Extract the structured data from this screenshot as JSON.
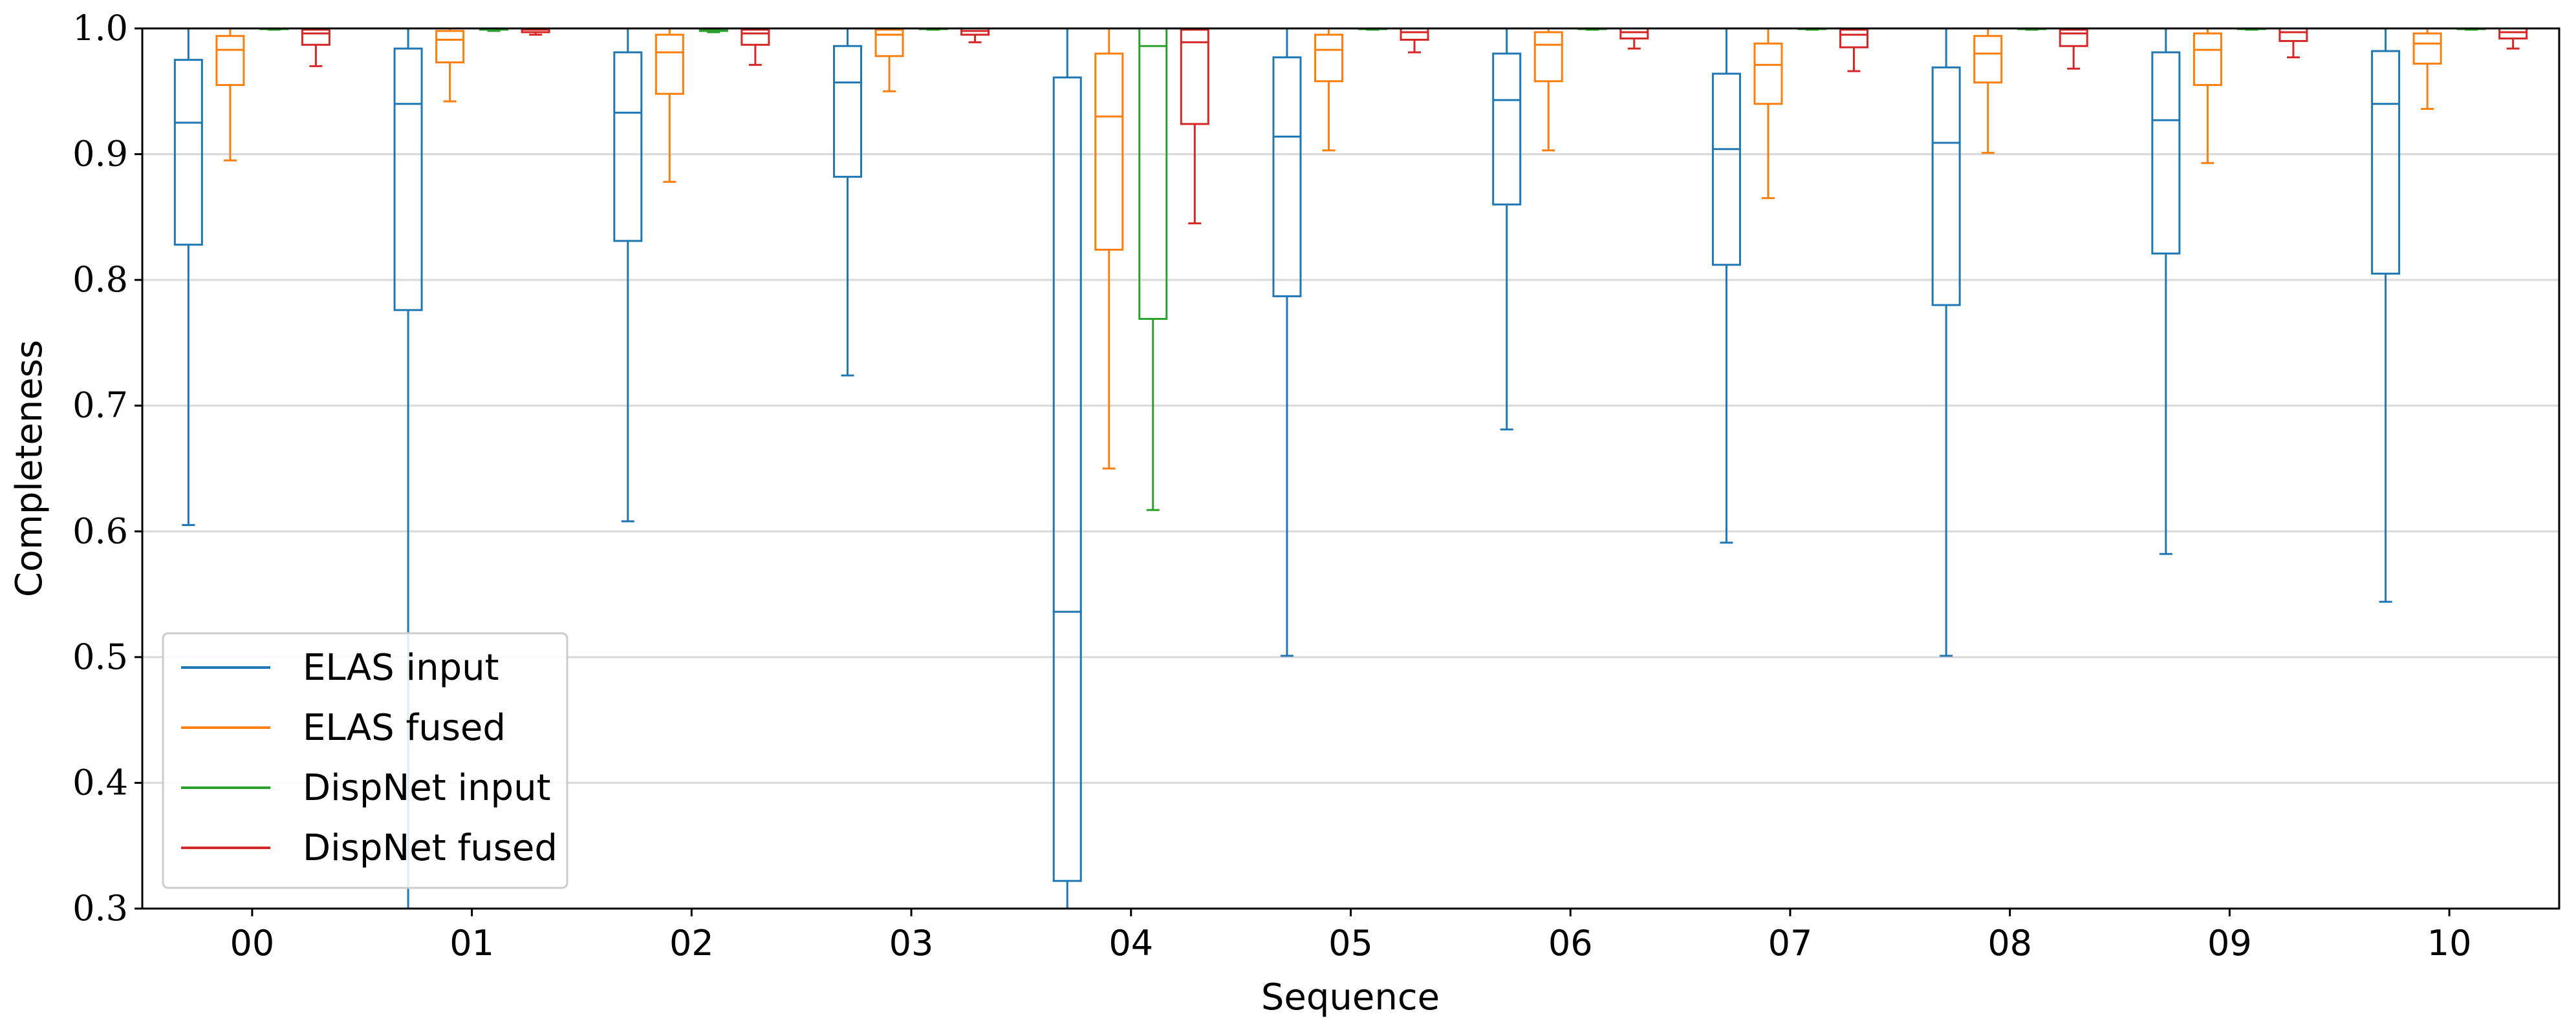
{
  "chart_data": {
    "type": "box",
    "title": "",
    "xlabel": "Sequence",
    "ylabel": "Completeness",
    "ylim": [
      0.3,
      1.0
    ],
    "yticks": [
      "0.3",
      "0.4",
      "0.5",
      "0.6",
      "0.7",
      "0.8",
      "0.9",
      "1.0"
    ],
    "categories": [
      "00",
      "01",
      "02",
      "03",
      "04",
      "05",
      "06",
      "07",
      "08",
      "09",
      "10"
    ],
    "grid": "horizontal",
    "legend_position": "lower-left",
    "series": [
      {
        "name": "ELAS input",
        "color": "#1f77b4",
        "boxes": [
          {
            "whislo": 0.605,
            "q1": 0.828,
            "med": 0.925,
            "q3": 0.975,
            "whishi": 1.0
          },
          {
            "whislo": 0.3,
            "q1": 0.776,
            "med": 0.94,
            "q3": 0.984,
            "whishi": 1.0
          },
          {
            "whislo": 0.608,
            "q1": 0.831,
            "med": 0.933,
            "q3": 0.981,
            "whishi": 1.0
          },
          {
            "whislo": 0.724,
            "q1": 0.882,
            "med": 0.957,
            "q3": 0.986,
            "whishi": 1.0
          },
          {
            "whislo": 0.3,
            "q1": 0.322,
            "med": 0.536,
            "q3": 0.961,
            "whishi": 1.0
          },
          {
            "whislo": 0.501,
            "q1": 0.787,
            "med": 0.914,
            "q3": 0.977,
            "whishi": 1.0
          },
          {
            "whislo": 0.681,
            "q1": 0.86,
            "med": 0.943,
            "q3": 0.98,
            "whishi": 1.0
          },
          {
            "whislo": 0.591,
            "q1": 0.812,
            "med": 0.904,
            "q3": 0.964,
            "whishi": 1.0
          },
          {
            "whislo": 0.501,
            "q1": 0.78,
            "med": 0.909,
            "q3": 0.969,
            "whishi": 1.0
          },
          {
            "whislo": 0.582,
            "q1": 0.821,
            "med": 0.927,
            "q3": 0.981,
            "whishi": 1.0
          },
          {
            "whislo": 0.544,
            "q1": 0.805,
            "med": 0.94,
            "q3": 0.982,
            "whishi": 1.0
          }
        ]
      },
      {
        "name": "ELAS fused",
        "color": "#ff7f0e",
        "boxes": [
          {
            "whislo": 0.895,
            "q1": 0.955,
            "med": 0.983,
            "q3": 0.994,
            "whishi": 1.0
          },
          {
            "whislo": 0.942,
            "q1": 0.973,
            "med": 0.991,
            "q3": 0.998,
            "whishi": 1.0
          },
          {
            "whislo": 0.878,
            "q1": 0.948,
            "med": 0.981,
            "q3": 0.995,
            "whishi": 1.0
          },
          {
            "whislo": 0.95,
            "q1": 0.978,
            "med": 0.995,
            "q3": 0.999,
            "whishi": 1.0
          },
          {
            "whislo": 0.65,
            "q1": 0.824,
            "med": 0.93,
            "q3": 0.98,
            "whishi": 1.0
          },
          {
            "whislo": 0.903,
            "q1": 0.958,
            "med": 0.983,
            "q3": 0.995,
            "whishi": 1.0
          },
          {
            "whislo": 0.903,
            "q1": 0.958,
            "med": 0.987,
            "q3": 0.997,
            "whishi": 1.0
          },
          {
            "whislo": 0.865,
            "q1": 0.94,
            "med": 0.971,
            "q3": 0.988,
            "whishi": 1.0
          },
          {
            "whislo": 0.901,
            "q1": 0.957,
            "med": 0.98,
            "q3": 0.994,
            "whishi": 1.0
          },
          {
            "whislo": 0.893,
            "q1": 0.955,
            "med": 0.983,
            "q3": 0.996,
            "whishi": 1.0
          },
          {
            "whislo": 0.936,
            "q1": 0.972,
            "med": 0.988,
            "q3": 0.996,
            "whishi": 1.0
          }
        ]
      },
      {
        "name": "DispNet input",
        "color": "#2ca02c",
        "boxes": [
          {
            "whislo": 0.999,
            "q1": 0.9995,
            "med": 1.0,
            "q3": 1.0,
            "whishi": 1.0
          },
          {
            "whislo": 0.998,
            "q1": 0.999,
            "med": 1.0,
            "q3": 1.0,
            "whishi": 1.0
          },
          {
            "whislo": 0.997,
            "q1": 0.998,
            "med": 0.999,
            "q3": 1.0,
            "whishi": 1.0
          },
          {
            "whislo": 0.999,
            "q1": 0.9995,
            "med": 1.0,
            "q3": 1.0,
            "whishi": 1.0
          },
          {
            "whislo": 0.617,
            "q1": 0.769,
            "med": 0.986,
            "q3": 1.0,
            "whishi": 1.0
          },
          {
            "whislo": 0.999,
            "q1": 0.9995,
            "med": 1.0,
            "q3": 1.0,
            "whishi": 1.0
          },
          {
            "whislo": 0.999,
            "q1": 0.9995,
            "med": 1.0,
            "q3": 1.0,
            "whishi": 1.0
          },
          {
            "whislo": 0.999,
            "q1": 0.9995,
            "med": 1.0,
            "q3": 1.0,
            "whishi": 1.0
          },
          {
            "whislo": 0.999,
            "q1": 0.9995,
            "med": 1.0,
            "q3": 1.0,
            "whishi": 1.0
          },
          {
            "whislo": 0.999,
            "q1": 0.9995,
            "med": 1.0,
            "q3": 1.0,
            "whishi": 1.0
          },
          {
            "whislo": 0.999,
            "q1": 0.9995,
            "med": 1.0,
            "q3": 1.0,
            "whishi": 1.0
          }
        ]
      },
      {
        "name": "DispNet fused",
        "color": "#d62728",
        "boxes": [
          {
            "whislo": 0.97,
            "q1": 0.987,
            "med": 0.996,
            "q3": 0.999,
            "whishi": 1.0
          },
          {
            "whislo": 0.995,
            "q1": 0.997,
            "med": 0.999,
            "q3": 1.0,
            "whishi": 1.0
          },
          {
            "whislo": 0.971,
            "q1": 0.987,
            "med": 0.996,
            "q3": 0.999,
            "whishi": 1.0
          },
          {
            "whislo": 0.989,
            "q1": 0.995,
            "med": 0.998,
            "q3": 1.0,
            "whishi": 1.0
          },
          {
            "whislo": 0.845,
            "q1": 0.924,
            "med": 0.989,
            "q3": 0.999,
            "whishi": 1.0
          },
          {
            "whislo": 0.981,
            "q1": 0.991,
            "med": 0.997,
            "q3": 1.0,
            "whishi": 1.0
          },
          {
            "whislo": 0.984,
            "q1": 0.992,
            "med": 0.997,
            "q3": 1.0,
            "whishi": 1.0
          },
          {
            "whislo": 0.966,
            "q1": 0.985,
            "med": 0.995,
            "q3": 0.999,
            "whishi": 1.0
          },
          {
            "whislo": 0.968,
            "q1": 0.986,
            "med": 0.996,
            "q3": 0.999,
            "whishi": 1.0
          },
          {
            "whislo": 0.977,
            "q1": 0.99,
            "med": 0.997,
            "q3": 1.0,
            "whishi": 1.0
          },
          {
            "whislo": 0.984,
            "q1": 0.992,
            "med": 0.997,
            "q3": 1.0,
            "whishi": 1.0
          }
        ]
      }
    ]
  }
}
